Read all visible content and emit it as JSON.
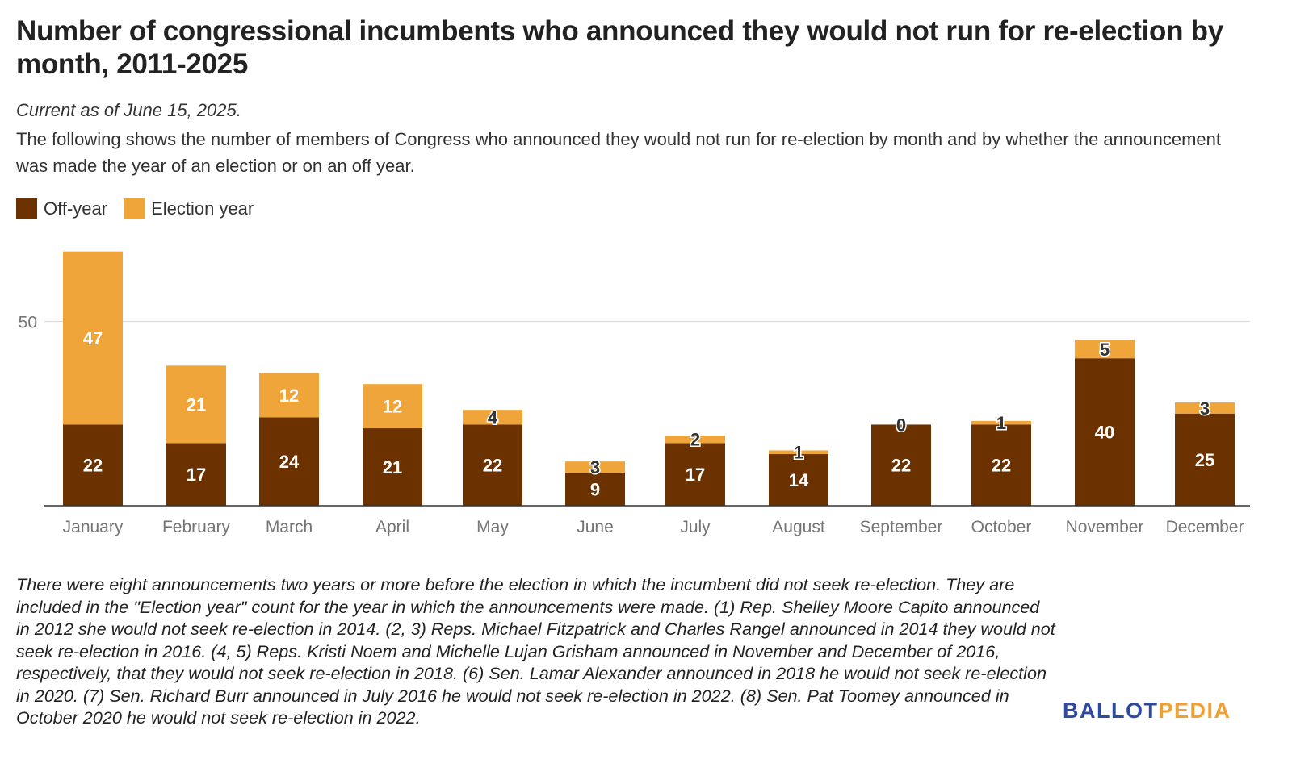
{
  "title": "Number of congressional incumbents who announced they would not run for re-election by month, 2011-2025",
  "subtitle": "Current as of June 15, 2025.",
  "description": "The following shows the number of members of Congress who announced they would not run for re-election by month and by whether the announcement was made the year of an election or on an off year.",
  "legend": [
    {
      "label": "Off-year",
      "color": "#6b3200"
    },
    {
      "label": "Election year",
      "color": "#f0a53a"
    }
  ],
  "chart_data": {
    "type": "bar",
    "stacked": true,
    "categories": [
      "January",
      "February",
      "March",
      "April",
      "May",
      "June",
      "July",
      "August",
      "September",
      "October",
      "November",
      "December"
    ],
    "series": [
      {
        "name": "Off-year",
        "color": "#6b3200",
        "values": [
          22,
          17,
          24,
          21,
          22,
          9,
          17,
          14,
          22,
          22,
          40,
          25
        ]
      },
      {
        "name": "Election year",
        "color": "#f0a53a",
        "values": [
          47,
          21,
          12,
          12,
          4,
          3,
          2,
          1,
          0,
          1,
          5,
          3
        ]
      }
    ],
    "yticks": [
      50
    ],
    "ylim": [
      0,
      75
    ],
    "grid": true,
    "legend_position": "top-left"
  },
  "footnote": "There were eight announcements two years or more before the election in which the incumbent did not seek re-election. They are included in the \"Election year\" count for the year in which the announcements were made. (1) Rep. Shelley Moore Capito announced in 2012 she would not seek re-election in 2014. (2, 3) Reps. Michael Fitzpatrick and Charles Rangel announced in 2014 they would not seek re-election in 2016. (4, 5) Reps. Kristi Noem and Michelle Lujan Grisham announced in November and December of 2016, respectively, that they would not seek re-election in 2018. (6) Sen. Lamar Alexander announced in 2018 he would not seek re-election in 2020. (7) Sen. Richard Burr announced in July 2016 he would not seek re-election in 2022. (8) Sen. Pat Toomey announced in October 2020 he would not seek re-election in 2022.",
  "logo": {
    "part1": "BALLOT",
    "part2": "PEDIA"
  }
}
